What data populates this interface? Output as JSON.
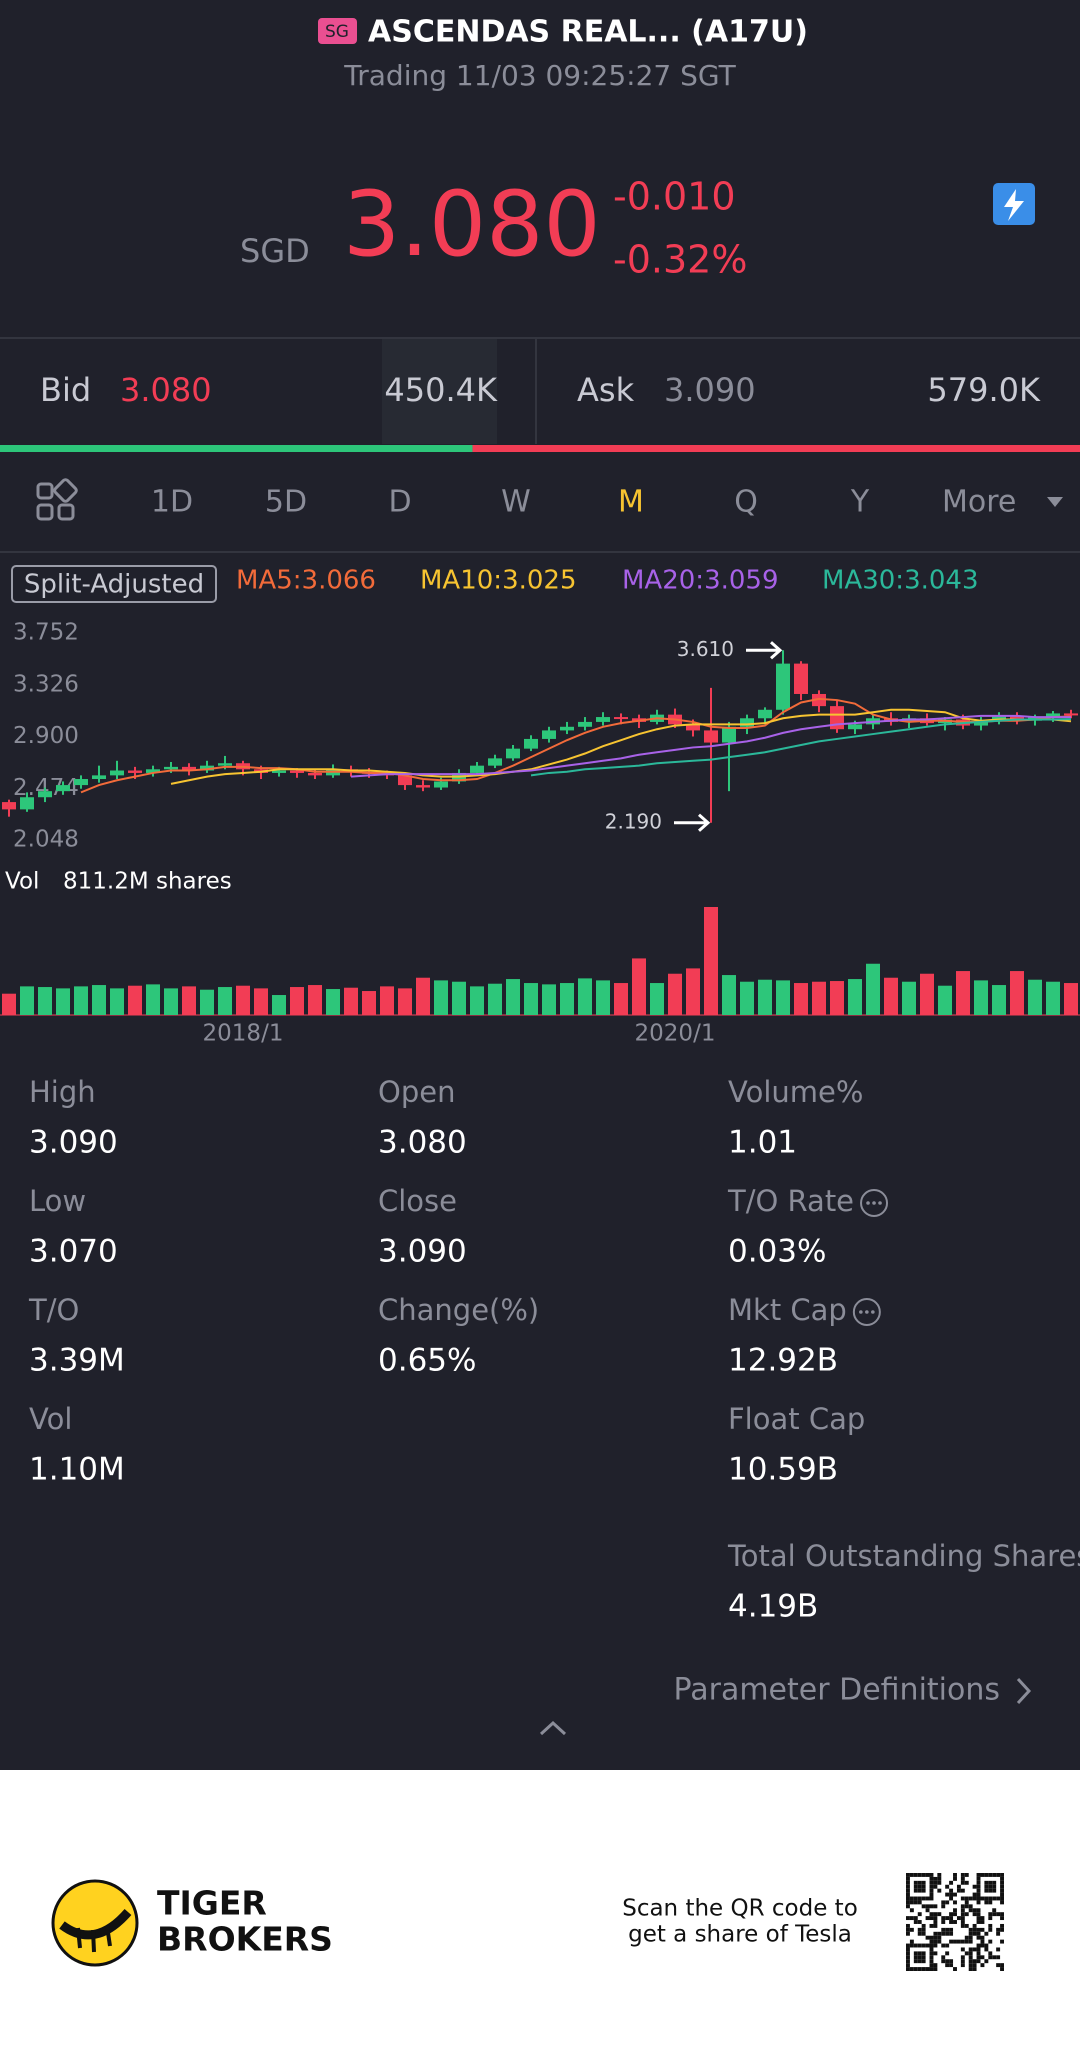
{
  "header": {
    "badge": "SG",
    "title": "ASCENDAS REAL... (A17U)",
    "status": "Trading 11/03 09:25:27 SGT"
  },
  "quote": {
    "currency": "SGD",
    "price": "3.080",
    "change": "-0.010",
    "change_pct": "-0.32%"
  },
  "order_book": {
    "bid_label": "Bid",
    "bid": "3.080",
    "bid_size": {
      "value": 450400,
      "label": "450.4K"
    },
    "ask_label": "Ask",
    "ask": "3.090",
    "ask_size": {
      "value": 579000,
      "label": "579.0K"
    }
  },
  "periods": [
    "1D",
    "5D",
    "D",
    "W",
    "M",
    "Q",
    "Y",
    "More"
  ],
  "active_period_index": 4,
  "chart_data": {
    "type": "candlestick",
    "adjust_label": "Split-Adjusted",
    "ylim": [
      2.048,
      3.752
    ],
    "yticks": [
      3.752,
      3.326,
      {
        "value": 2.9,
        "label": "2.900"
      },
      2.474,
      2.048
    ],
    "grid": false,
    "up_color": "#2dc67a",
    "down_color": "#f23d55",
    "categories": [
      null,
      null,
      null,
      null,
      null,
      null,
      null,
      null,
      null,
      null,
      null,
      null,
      null,
      "2018/1",
      null,
      null,
      null,
      null,
      null,
      null,
      null,
      null,
      null,
      null,
      null,
      null,
      null,
      null,
      null,
      null,
      null,
      null,
      null,
      null,
      null,
      null,
      null,
      "2020/1",
      null,
      null,
      null,
      null,
      null,
      null,
      null,
      null,
      null,
      null,
      null,
      null,
      null,
      null,
      null,
      null,
      null,
      null,
      null,
      null,
      null,
      null
    ],
    "ohlc": [
      [
        2.36,
        2.38,
        2.24,
        2.3
      ],
      [
        2.3,
        2.44,
        2.28,
        2.4
      ],
      [
        2.4,
        2.48,
        2.36,
        2.45
      ],
      [
        2.45,
        2.53,
        2.42,
        2.5
      ],
      [
        2.5,
        2.58,
        2.47,
        2.55
      ],
      [
        2.55,
        2.66,
        2.52,
        2.58
      ],
      [
        2.58,
        2.7,
        2.55,
        2.62
      ],
      [
        2.62,
        2.65,
        2.55,
        2.6
      ],
      [
        2.6,
        2.66,
        2.57,
        2.63
      ],
      [
        2.63,
        2.69,
        2.6,
        2.65
      ],
      [
        2.65,
        2.68,
        2.58,
        2.62
      ],
      [
        2.62,
        2.7,
        2.6,
        2.66
      ],
      [
        2.66,
        2.74,
        2.63,
        2.68
      ],
      [
        2.68,
        2.7,
        2.58,
        2.63
      ],
      [
        2.63,
        2.66,
        2.55,
        2.6
      ],
      [
        2.6,
        2.65,
        2.57,
        2.62
      ],
      [
        2.62,
        2.64,
        2.56,
        2.6
      ],
      [
        2.6,
        2.63,
        2.55,
        2.58
      ],
      [
        2.58,
        2.67,
        2.56,
        2.63
      ],
      [
        2.63,
        2.66,
        2.57,
        2.61
      ],
      [
        2.61,
        2.64,
        2.56,
        2.6
      ],
      [
        2.6,
        2.62,
        2.55,
        2.58
      ],
      [
        2.58,
        2.6,
        2.46,
        2.5
      ],
      [
        2.5,
        2.54,
        2.45,
        2.48
      ],
      [
        2.48,
        2.56,
        2.46,
        2.53
      ],
      [
        2.53,
        2.63,
        2.51,
        2.6
      ],
      [
        2.6,
        2.69,
        2.58,
        2.66
      ],
      [
        2.66,
        2.75,
        2.64,
        2.72
      ],
      [
        2.72,
        2.83,
        2.7,
        2.8
      ],
      [
        2.8,
        2.91,
        2.78,
        2.88
      ],
      [
        2.88,
        2.98,
        2.85,
        2.95
      ],
      [
        2.95,
        3.02,
        2.92,
        2.98
      ],
      [
        2.98,
        3.06,
        2.95,
        3.02
      ],
      [
        3.02,
        3.1,
        2.99,
        3.06
      ],
      [
        3.06,
        3.09,
        3.0,
        3.05
      ],
      [
        3.05,
        3.08,
        2.97,
        3.02
      ],
      [
        3.02,
        3.12,
        3.0,
        3.08
      ],
      [
        3.08,
        3.13,
        2.97,
        3.0
      ],
      [
        3.0,
        3.04,
        2.9,
        2.95
      ],
      [
        2.95,
        3.3,
        2.19,
        2.85
      ],
      [
        2.85,
        3.02,
        2.45,
        2.98
      ],
      [
        2.98,
        3.08,
        2.92,
        3.05
      ],
      [
        3.05,
        3.14,
        3.0,
        3.12
      ],
      [
        3.12,
        3.61,
        3.08,
        3.5
      ],
      [
        3.5,
        3.52,
        3.2,
        3.25
      ],
      [
        3.25,
        3.28,
        3.1,
        3.15
      ],
      [
        3.15,
        3.2,
        2.93,
        2.96
      ],
      [
        2.96,
        3.03,
        2.92,
        3.0
      ],
      [
        3.0,
        3.08,
        2.96,
        3.05
      ],
      [
        3.05,
        3.1,
        2.99,
        3.02
      ],
      [
        3.02,
        3.08,
        2.97,
        3.05
      ],
      [
        3.05,
        3.09,
        2.99,
        3.01
      ],
      [
        3.01,
        3.06,
        2.95,
        3.04
      ],
      [
        3.04,
        3.08,
        2.96,
        2.99
      ],
      [
        2.99,
        3.06,
        2.95,
        3.03
      ],
      [
        3.03,
        3.1,
        3.0,
        3.07
      ],
      [
        3.07,
        3.1,
        3.0,
        3.03
      ],
      [
        3.03,
        3.08,
        2.99,
        3.06
      ],
      [
        3.06,
        3.11,
        3.02,
        3.09
      ],
      [
        3.09,
        3.12,
        3.05,
        3.08
      ]
    ],
    "annotations": [
      {
        "value": 3.61,
        "label": "3.610"
      },
      {
        "value": 2.19,
        "label": "2.190"
      }
    ],
    "ma": [
      {
        "name": "MA5:3.066",
        "color": "#f26b3a",
        "values": [
          null,
          null,
          null,
          null,
          2.44,
          2.5,
          2.54,
          2.57,
          2.6,
          2.62,
          2.62,
          2.63,
          2.65,
          2.65,
          2.64,
          2.64,
          2.63,
          2.61,
          2.61,
          2.61,
          2.6,
          2.6,
          2.58,
          2.55,
          2.54,
          2.54,
          2.55,
          2.6,
          2.66,
          2.73,
          2.8,
          2.87,
          2.93,
          2.98,
          3.01,
          3.03,
          3.05,
          3.04,
          3.02,
          2.98,
          2.97,
          2.97,
          2.99,
          3.1,
          3.18,
          3.21,
          3.2,
          3.17,
          3.08,
          3.04,
          3.02,
          3.03,
          3.03,
          3.02,
          3.02,
          3.03,
          3.03,
          3.04,
          3.06,
          3.066
        ]
      },
      {
        "name": "MA10:3.025",
        "color": "#f7c431",
        "values": [
          null,
          null,
          null,
          null,
          null,
          null,
          null,
          null,
          null,
          2.51,
          2.54,
          2.57,
          2.59,
          2.6,
          2.61,
          2.63,
          2.63,
          2.63,
          2.63,
          2.62,
          2.62,
          2.61,
          2.6,
          2.58,
          2.57,
          2.57,
          2.58,
          2.59,
          2.61,
          2.63,
          2.67,
          2.71,
          2.76,
          2.82,
          2.87,
          2.92,
          2.96,
          2.99,
          3.0,
          3.0,
          3.0,
          3.0,
          3.01,
          3.05,
          3.07,
          3.08,
          3.08,
          3.08,
          3.1,
          3.12,
          3.12,
          3.11,
          3.1,
          3.05,
          3.03,
          3.04,
          3.04,
          3.04,
          3.04,
          3.025
        ]
      },
      {
        "name": "MA20:3.059",
        "color": "#a862e8",
        "values": [
          null,
          null,
          null,
          null,
          null,
          null,
          null,
          null,
          null,
          null,
          null,
          null,
          null,
          null,
          null,
          null,
          null,
          null,
          null,
          2.57,
          2.58,
          2.59,
          2.59,
          2.59,
          2.59,
          2.59,
          2.59,
          2.6,
          2.61,
          2.62,
          2.64,
          2.66,
          2.68,
          2.7,
          2.72,
          2.75,
          2.77,
          2.79,
          2.81,
          2.82,
          2.84,
          2.86,
          2.89,
          2.93,
          2.96,
          2.98,
          3.0,
          3.01,
          3.02,
          3.03,
          3.04,
          3.04,
          3.05,
          3.06,
          3.07,
          3.07,
          3.07,
          3.06,
          3.06,
          3.059
        ]
      },
      {
        "name": "MA30:3.043",
        "color": "#2bb89a",
        "values": [
          null,
          null,
          null,
          null,
          null,
          null,
          null,
          null,
          null,
          null,
          null,
          null,
          null,
          null,
          null,
          null,
          null,
          null,
          null,
          null,
          null,
          null,
          null,
          null,
          null,
          null,
          null,
          null,
          null,
          2.58,
          2.6,
          2.61,
          2.63,
          2.64,
          2.65,
          2.66,
          2.68,
          2.69,
          2.7,
          2.71,
          2.73,
          2.75,
          2.77,
          2.8,
          2.83,
          2.86,
          2.88,
          2.9,
          2.92,
          2.94,
          2.96,
          2.98,
          3.0,
          3.01,
          3.02,
          3.03,
          3.04,
          3.04,
          3.04,
          3.043
        ]
      }
    ],
    "volume": {
      "label": "Vol",
      "scale": {
        "value": 811.2,
        "label": "811.2M shares"
      },
      "values": [
        160,
        215,
        210,
        200,
        215,
        225,
        200,
        220,
        230,
        200,
        215,
        190,
        210,
        220,
        200,
        150,
        210,
        225,
        195,
        205,
        180,
        215,
        200,
        280,
        260,
        250,
        215,
        235,
        270,
        240,
        230,
        240,
        275,
        260,
        240,
        425,
        240,
        310,
        350,
        811.2,
        300,
        250,
        265,
        260,
        240,
        250,
        255,
        270,
        385,
        280,
        250,
        310,
        220,
        330,
        260,
        225,
        330,
        265,
        250,
        240
      ]
    }
  },
  "stats": [
    [
      {
        "label": "High",
        "value": "3.090"
      },
      {
        "label": "Low",
        "value": "3.070"
      },
      {
        "label": "T/O",
        "value": "3.39M"
      },
      {
        "label": "Vol",
        "value": "1.10M"
      }
    ],
    [
      {
        "label": "Open",
        "value": "3.080"
      },
      {
        "label": "Close",
        "value": "3.090"
      },
      {
        "label": "Change(%)",
        "value": "0.65%"
      }
    ],
    [
      {
        "label": "Volume%",
        "value": "1.01"
      },
      {
        "label": "T/O Rate",
        "value": "0.03%",
        "info": true
      },
      {
        "label": "Mkt Cap",
        "value": "12.92B",
        "info": true
      },
      {
        "label": "Float Cap",
        "value": "10.59B"
      },
      {
        "label": "Total Outstanding Shares",
        "value": "4.19B"
      }
    ]
  ],
  "footer": {
    "param_link": "Parameter Definitions",
    "brand": [
      "TIGER",
      "BROKERS"
    ],
    "promo": [
      "Scan the QR code to",
      "get a share of Tesla"
    ]
  }
}
